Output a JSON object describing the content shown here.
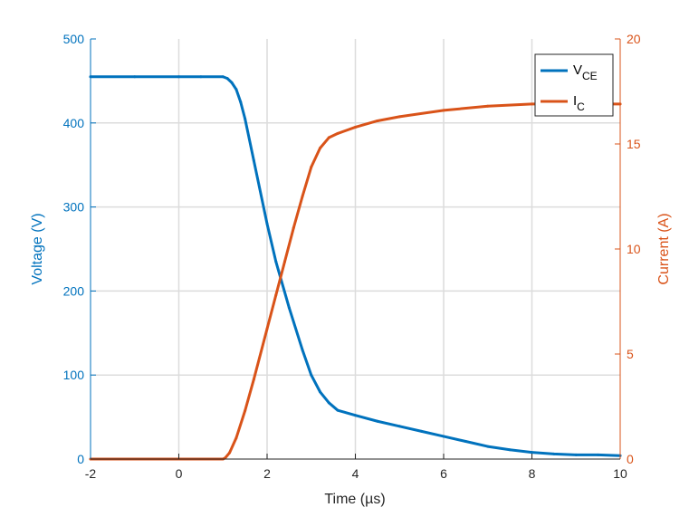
{
  "chart_data": {
    "type": "line",
    "title": "",
    "xlabel": "Time (µs)",
    "ylabel_left": "Voltage (V)",
    "ylabel_right": "Current (A)",
    "xlim": [
      -2,
      10
    ],
    "ylim_left": [
      0,
      500
    ],
    "ylim_right": [
      0,
      20
    ],
    "x_ticks": [
      "-2",
      "0",
      "2",
      "4",
      "6",
      "8",
      "10"
    ],
    "y_left_ticks": [
      "0",
      "100",
      "200",
      "300",
      "400",
      "500"
    ],
    "y_right_ticks": [
      "0",
      "5",
      "10",
      "15",
      "20"
    ],
    "grid": true,
    "legend_position": "top-right",
    "legend": [
      {
        "main": "V",
        "sub": "CE"
      },
      {
        "main": "I",
        "sub": "C"
      }
    ],
    "colors": {
      "voltage": "#0072BD",
      "current": "#D95319",
      "grid": "#dcdcdc"
    },
    "series": [
      {
        "axis": "left",
        "color": "#0072BD",
        "x": [
          -2,
          -1,
          0,
          0.5,
          1.0,
          1.1,
          1.2,
          1.3,
          1.4,
          1.5,
          1.7,
          2.0,
          2.2,
          2.5,
          2.8,
          3.0,
          3.2,
          3.4,
          3.6,
          4.0,
          4.5,
          5.0,
          5.5,
          6.0,
          6.5,
          7.0,
          7.5,
          8.0,
          8.5,
          9.0,
          9.5,
          10.0
        ],
        "values": [
          455,
          455,
          455,
          455,
          455,
          453,
          448,
          440,
          425,
          405,
          355,
          280,
          235,
          180,
          130,
          100,
          80,
          67,
          58,
          52,
          45,
          39,
          33,
          27,
          21,
          15,
          11,
          8,
          6,
          5,
          5,
          4
        ]
      },
      {
        "axis": "right",
        "color": "#D95319",
        "x": [
          -2,
          -1,
          0,
          0.5,
          1.0,
          1.05,
          1.15,
          1.3,
          1.5,
          1.7,
          2.0,
          2.2,
          2.4,
          2.6,
          2.8,
          3.0,
          3.2,
          3.4,
          3.6,
          4.0,
          4.5,
          5.0,
          6.0,
          7.0,
          8.0,
          9.0,
          10.0
        ],
        "values": [
          0,
          0,
          0,
          0,
          0,
          0.05,
          0.3,
          1.0,
          2.3,
          3.8,
          6.2,
          7.8,
          9.4,
          11.0,
          12.5,
          13.9,
          14.8,
          15.3,
          15.5,
          15.8,
          16.1,
          16.3,
          16.6,
          16.8,
          16.9,
          16.9,
          16.9
        ]
      }
    ]
  }
}
